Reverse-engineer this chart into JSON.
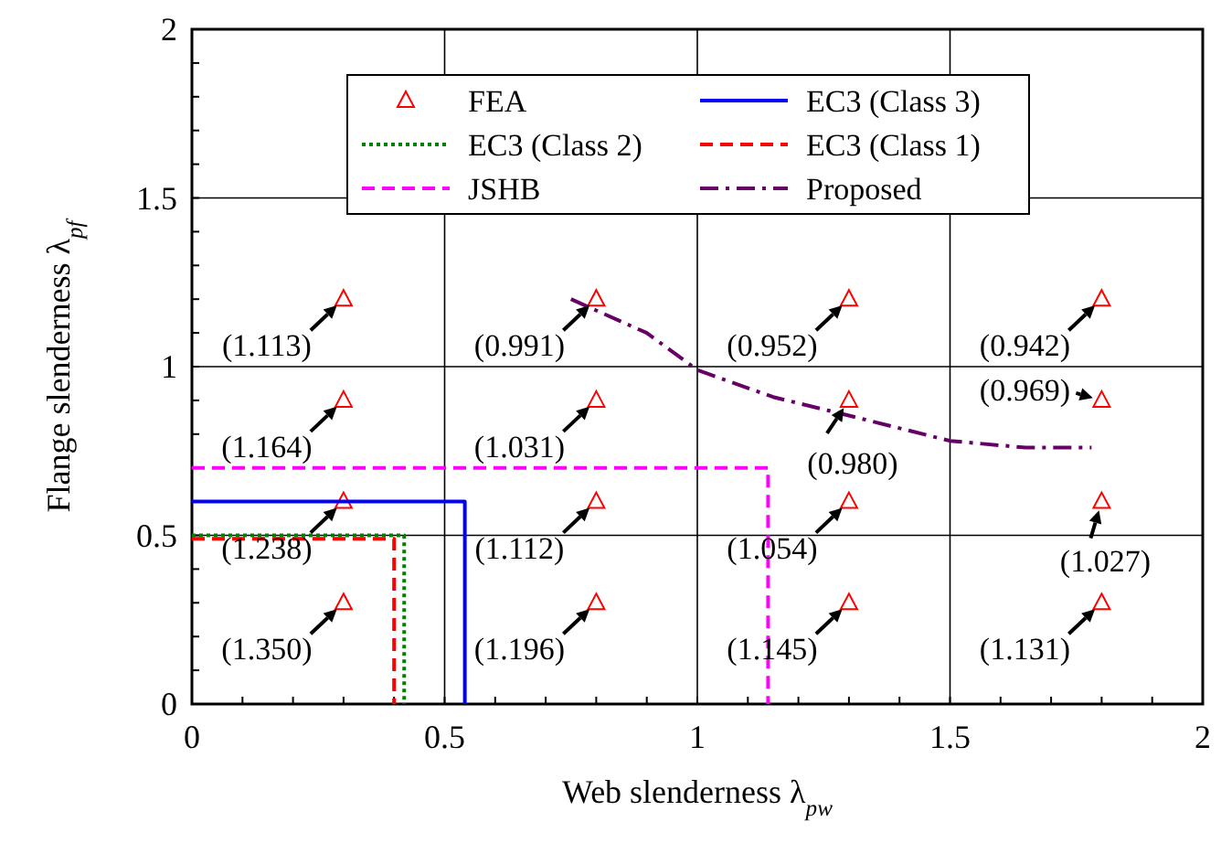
{
  "chart_data": {
    "type": "scatter",
    "xlabel": "Web slenderness λ$_{pw}$",
    "ylabel": "Flange slenderness λ$_{pf}$",
    "xlim": [
      0,
      2
    ],
    "ylim": [
      0,
      2
    ],
    "xticks": [
      0,
      {
        "value": 0.1,
        "label": null
      },
      {
        "value": 0.2,
        "label": null
      },
      {
        "value": 0.3,
        "label": null
      },
      {
        "value": 0.4,
        "label": null
      },
      0.5,
      {
        "value": 0.6,
        "label": null
      },
      {
        "value": 0.7,
        "label": null
      },
      {
        "value": 0.8,
        "label": null
      },
      {
        "value": 0.9,
        "label": null
      },
      1,
      {
        "value": 1.1,
        "label": null
      },
      {
        "value": 1.2,
        "label": null
      },
      {
        "value": 1.3,
        "label": null
      },
      {
        "value": 1.4,
        "label": null
      },
      1.5,
      {
        "value": 1.6,
        "label": null
      },
      {
        "value": 1.7,
        "label": null
      },
      {
        "value": 1.8,
        "label": null
      },
      {
        "value": 1.9,
        "label": null
      },
      2
    ],
    "yticks": [
      0,
      {
        "value": 0.1,
        "label": null
      },
      {
        "value": 0.2,
        "label": null
      },
      {
        "value": 0.3,
        "label": null
      },
      {
        "value": 0.4,
        "label": null
      },
      0.5,
      {
        "value": 0.6,
        "label": null
      },
      {
        "value": 0.7,
        "label": null
      },
      {
        "value": 0.8,
        "label": null
      },
      {
        "value": 0.9,
        "label": null
      },
      1,
      {
        "value": 1.1,
        "label": null
      },
      {
        "value": 1.2,
        "label": null
      },
      {
        "value": 1.3,
        "label": null
      },
      {
        "value": 1.4,
        "label": null
      },
      1.5,
      {
        "value": 1.6,
        "label": null
      },
      {
        "value": 1.7,
        "label": null
      },
      {
        "value": 1.8,
        "label": null
      },
      {
        "value": 1.9,
        "label": null
      },
      2
    ],
    "grid": true,
    "legend": "top",
    "series": [
      {
        "name": "FEA",
        "marker": "triangle",
        "color": "#ff0000",
        "x": [
          0.3,
          0.3,
          0.3,
          0.3,
          0.8,
          0.8,
          0.8,
          0.8,
          1.3,
          1.3,
          1.3,
          1.3,
          1.8,
          1.8,
          1.8,
          1.8
        ],
        "values": [
          1.2,
          0.9,
          0.6,
          0.3,
          1.2,
          0.9,
          0.6,
          0.3,
          1.2,
          0.9,
          0.6,
          0.3,
          1.2,
          0.9,
          0.6,
          0.3
        ]
      },
      {
        "name": "EC3 (Class 3)",
        "type": "line",
        "line_style": "solid",
        "color": "#0000ff",
        "x": [
          0,
          0.54,
          0.54
        ],
        "values": [
          0.6,
          0.6,
          0
        ]
      },
      {
        "name": "EC3 (Class 2)",
        "type": "line",
        "line_style": "dotted",
        "color": "#008000",
        "x": [
          0,
          0.42,
          0.42
        ],
        "values": [
          0.5,
          0.5,
          0
        ]
      },
      {
        "name": "EC3 (Class 1)",
        "type": "line",
        "line_style": "dashed",
        "color": "#ff0000",
        "x": [
          0,
          0.4,
          0.4
        ],
        "values": [
          0.49,
          0.49,
          0
        ]
      },
      {
        "name": "JSHB",
        "type": "line",
        "line_style": "dashed",
        "color": "#ff00ff",
        "x": [
          0,
          1.14,
          1.14
        ],
        "values": [
          0.7,
          0.7,
          0
        ]
      },
      {
        "name": "Proposed",
        "type": "line",
        "line_style": "dashdot",
        "color": "#660066",
        "x": [
          0.75,
          0.9,
          1.0,
          1.15,
          1.3,
          1.5,
          1.65,
          1.78
        ],
        "values": [
          1.2,
          1.1,
          0.99,
          0.91,
          0.855,
          0.78,
          0.76,
          0.76
        ]
      }
    ],
    "annotations": [
      {
        "text": "(1.113)",
        "x": 0.3,
        "y": 1.2
      },
      {
        "text": "(1.164)",
        "x": 0.3,
        "y": 0.9
      },
      {
        "text": "(1.238)",
        "x": 0.3,
        "y": 0.6
      },
      {
        "text": "(1.350)",
        "x": 0.3,
        "y": 0.3
      },
      {
        "text": "(0.991)",
        "x": 0.8,
        "y": 1.2
      },
      {
        "text": "(1.031)",
        "x": 0.8,
        "y": 0.9
      },
      {
        "text": "(1.112)",
        "x": 0.8,
        "y": 0.6
      },
      {
        "text": "(1.196)",
        "x": 0.8,
        "y": 0.3
      },
      {
        "text": "(0.952)",
        "x": 1.3,
        "y": 1.2
      },
      {
        "text": "(0.980)",
        "x": 1.3,
        "y": 0.9
      },
      {
        "text": "(1.054)",
        "x": 1.3,
        "y": 0.6
      },
      {
        "text": "(1.145)",
        "x": 1.3,
        "y": 0.3
      },
      {
        "text": "(0.942)",
        "x": 1.8,
        "y": 1.2
      },
      {
        "text": "(0.969)",
        "x": 1.8,
        "y": 0.9
      },
      {
        "text": "(1.027)",
        "x": 1.8,
        "y": 0.6
      },
      {
        "text": "(1.131)",
        "x": 1.8,
        "y": 0.3
      }
    ]
  }
}
